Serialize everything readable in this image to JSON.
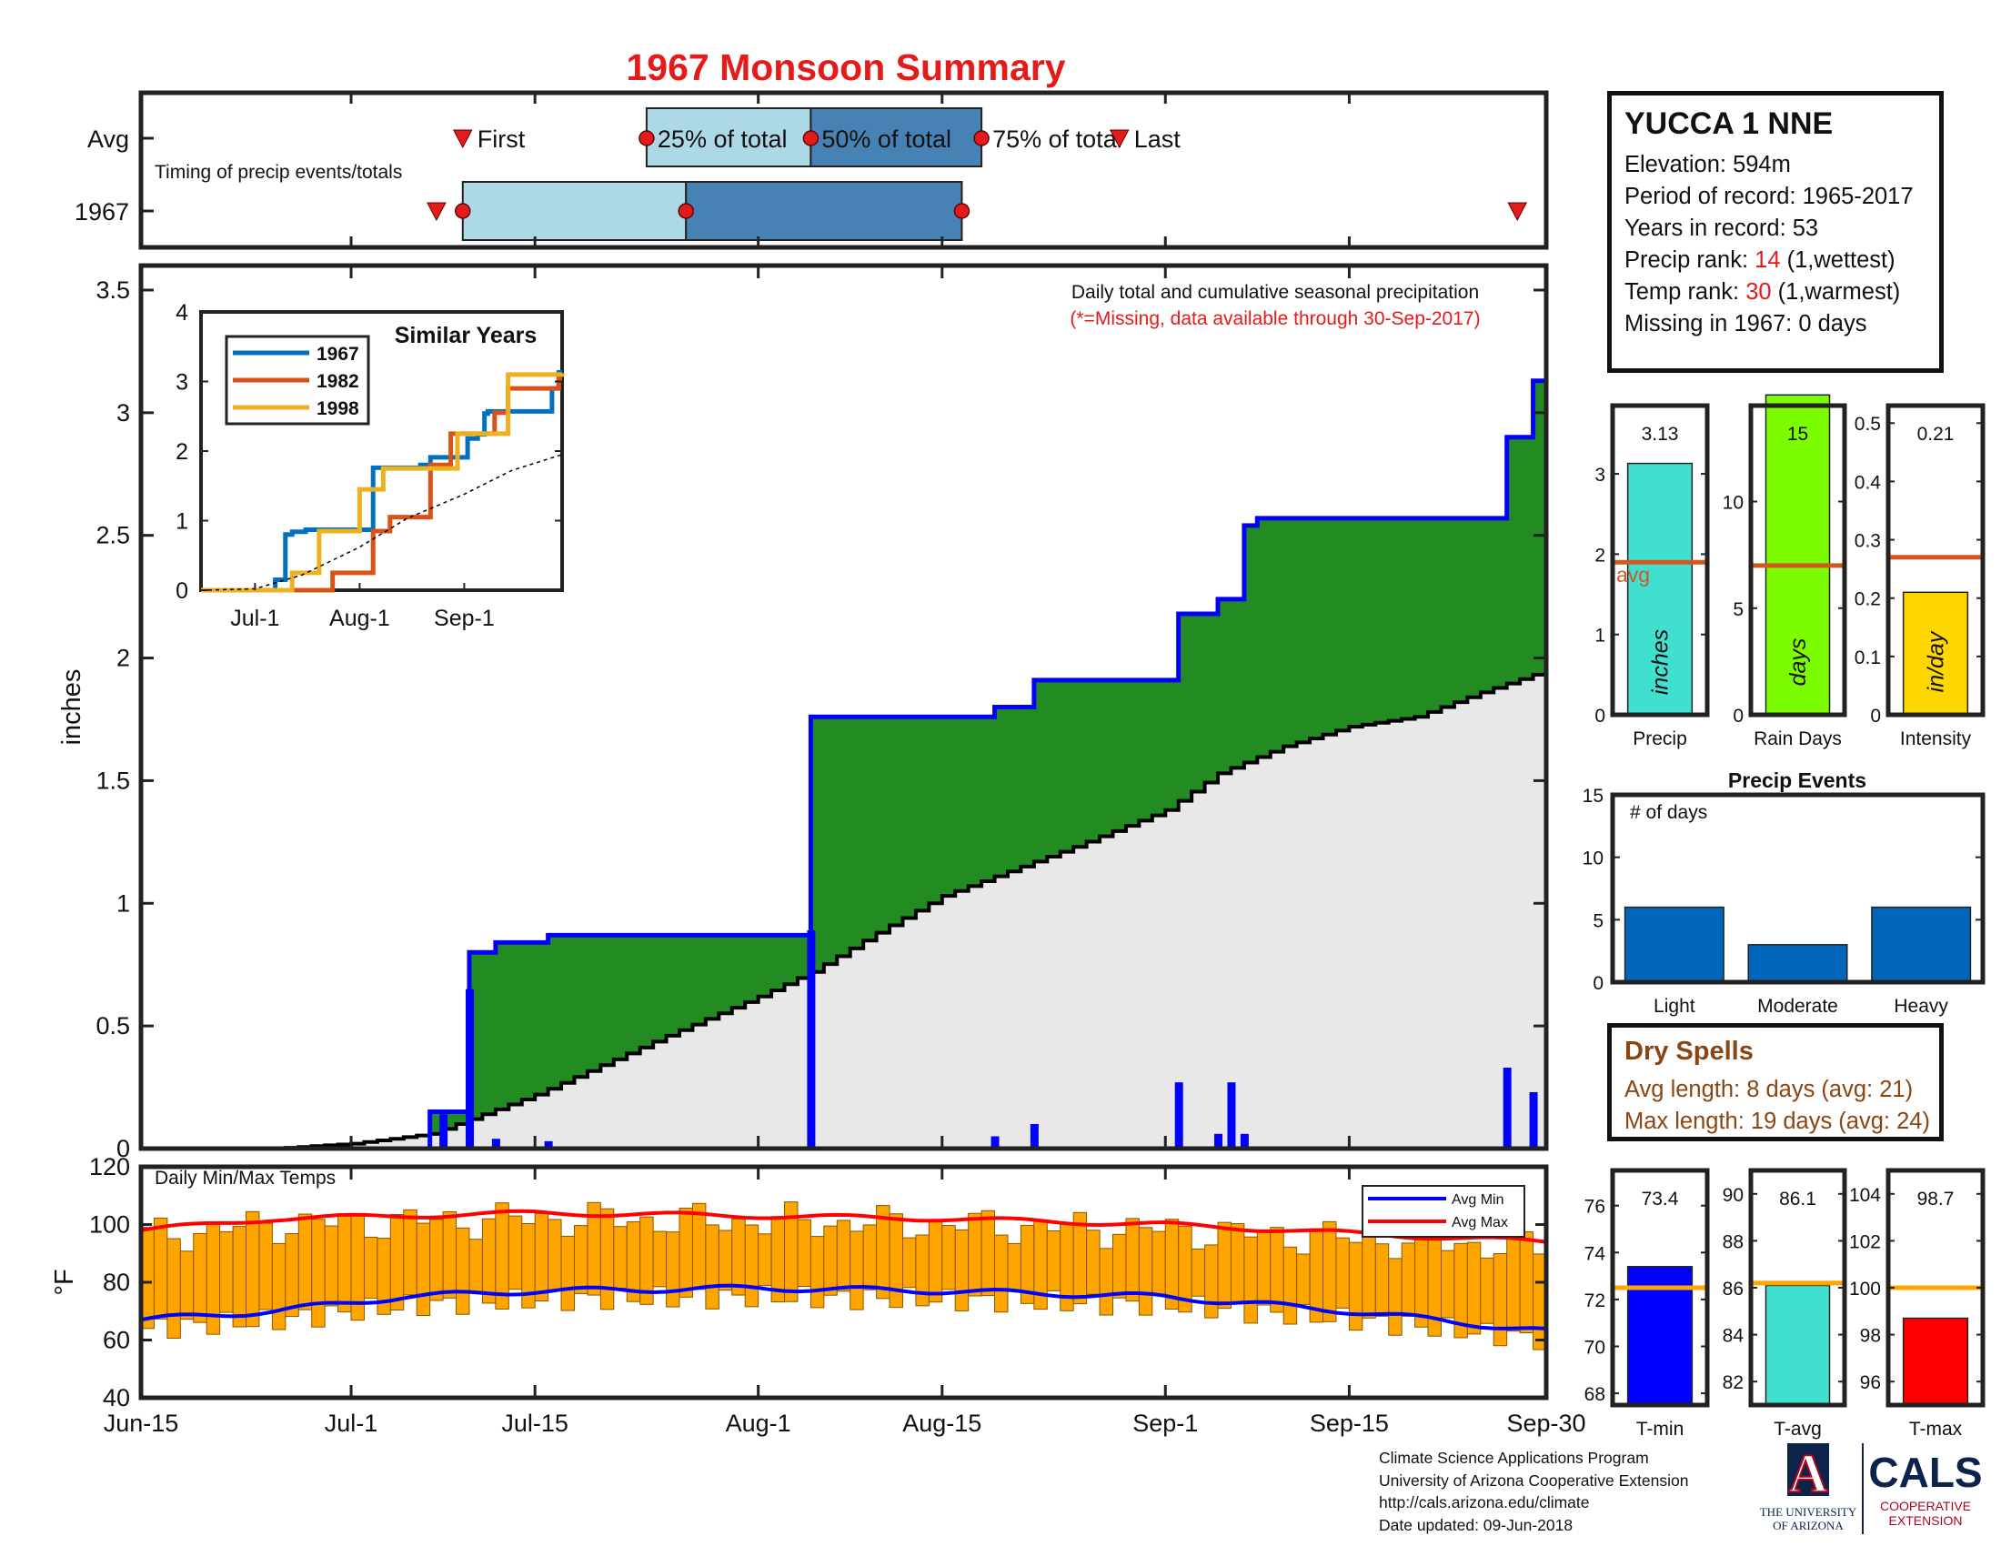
{
  "title": "1967 Monsoon Summary",
  "timing": {
    "row_labels": [
      "Avg",
      "1967"
    ],
    "subtitle": "Timing of precip events/totals",
    "markers": {
      "first": "First",
      "p25": "25% of total",
      "p50": "50% of total",
      "p75": "75% of total",
      "last": "Last"
    },
    "avg": {
      "first": 24.5,
      "p25": 38.5,
      "p50": 51.0,
      "p75": 64.0,
      "last": 74.5
    },
    "year": {
      "first": 22.5,
      "p25": 24.5,
      "p50": 41.5,
      "p75": 62.5,
      "last": 104.8
    }
  },
  "station": {
    "name": "YUCCA 1 NNE",
    "elevation": "Elevation: 594m",
    "period": "Period of record: 1965-2017",
    "years": "Years in record: 53",
    "precip_rank_prefix": "Precip rank: ",
    "precip_rank": "14",
    "precip_rank_suffix": " (1,wettest)",
    "temp_rank_prefix": "Temp rank: ",
    "temp_rank": "30",
    "temp_rank_suffix": " (1,warmest)",
    "missing": "Missing in 1967: 0 days"
  },
  "main_plot": {
    "note1": "Daily total and cumulative seasonal precipitation",
    "note2": "(*=Missing, data available through 30-Sep-2017)",
    "ylabel": "inches",
    "yticks": [
      "0",
      "0.5",
      "1",
      "1.5",
      "2",
      "2.5",
      "3",
      "3.5"
    ],
    "xticks": [
      "Jun-15",
      "Jul-1",
      "Jul-15",
      "Aug-1",
      "Aug-15",
      "Sep-1",
      "Sep-15",
      "Sep-30"
    ]
  },
  "inset": {
    "title": "Similar Years",
    "legend": [
      "1967",
      "1982",
      "1998"
    ],
    "yticks": [
      "0",
      "1",
      "2",
      "3",
      "4"
    ],
    "xticks": [
      "Jul-1",
      "Aug-1",
      "Sep-1"
    ]
  },
  "temp_plot": {
    "title": "Daily Min/Max Temps",
    "ylabel": "°F",
    "yticks": [
      "40",
      "60",
      "80",
      "100",
      "120"
    ],
    "legend": [
      "Avg Min",
      "Avg Max"
    ]
  },
  "mini_bars": [
    {
      "label": "Precip",
      "value": "3.13",
      "unit": "inches",
      "avg_label": "avg",
      "yticks": [
        "0",
        "1",
        "2",
        "3"
      ]
    },
    {
      "label": "Rain Days",
      "value": "15",
      "unit": "days",
      "yticks": [
        "0",
        "5",
        "10"
      ]
    },
    {
      "label": "Intensity",
      "value": "0.21",
      "unit": "in/day",
      "yticks": [
        "0",
        "0.1",
        "0.2",
        "0.3",
        "0.4",
        "0.5"
      ]
    }
  ],
  "events": {
    "title": "Precip Events",
    "ylabel": "# of days",
    "yticks": [
      "0",
      "5",
      "10",
      "15"
    ],
    "categories": [
      "Light",
      "Moderate",
      "Heavy"
    ]
  },
  "dry_spells": {
    "title": "Dry Spells",
    "avg": "Avg length: 8 days (avg: 21)",
    "max": "Max length: 19 days (avg: 24)"
  },
  "temp_bars": [
    {
      "label": "T-min",
      "value": "73.4",
      "yticks": [
        "68",
        "70",
        "72",
        "74",
        "76"
      ]
    },
    {
      "label": "T-avg",
      "value": "86.1",
      "yticks": [
        "82",
        "84",
        "86",
        "88",
        "90"
      ]
    },
    {
      "label": "T-max",
      "value": "98.7",
      "yticks": [
        "96",
        "98",
        "100",
        "102",
        "104"
      ]
    }
  ],
  "credit": [
    "Climate Science Applications Program",
    "University of Arizona Cooperative Extension",
    "http://cals.arizona.edu/climate",
    " Date updated: 09-Jun-2018"
  ],
  "logos": {
    "ua_letter": "A",
    "ua_name_1": "THE UNIVERSITY",
    "ua_name_2": "OF ARIZONA",
    "cals": "CALS",
    "cals_sub_1": "COOPERATIVE",
    "cals_sub_2": "EXTENSION"
  },
  "colors": {
    "title": "#e31b1b",
    "cum": "#228b22",
    "avg_fill": "#e8e8e8",
    "daily": "#0000ff",
    "light": "#add8e6",
    "dark": "#4682b4",
    "precip_bar": "#40e0d0",
    "days_bar": "#7cfc00",
    "int_bar": "#ffd700",
    "avg_line": "#d2581f",
    "events": "#0066bb",
    "tmin": "#0000ff",
    "tavg": "#40e0d0",
    "tmax": "#ff0000",
    "temp_bar": "#ffa500",
    "temp_ref": "#ffa500"
  },
  "chart_data": [
    {
      "type": "line",
      "title": "Daily total and cumulative seasonal precipitation",
      "xlabel": "",
      "ylabel": "inches",
      "xlim": [
        "Jun-15",
        "Sep-30"
      ],
      "ylim": [
        0,
        3.6
      ],
      "series": [
        {
          "name": "cumulative",
          "steps": [
            [
              "Jun-15",
              0
            ],
            [
              "Jul-7",
              0.15
            ],
            [
              "Jul-10",
              0.8
            ],
            [
              "Jul-12",
              0.84
            ],
            [
              "Jul-16",
              0.87
            ],
            [
              "Aug-5",
              1.76
            ],
            [
              "Aug-19",
              1.8
            ],
            [
              "Aug-22",
              1.91
            ],
            [
              "Sep-2",
              2.18
            ],
            [
              "Sep-5",
              2.24
            ],
            [
              "Sep-7",
              2.54
            ],
            [
              "Sep-8",
              2.57
            ],
            [
              "Sep-27",
              2.9
            ],
            [
              "Sep-29",
              3.13
            ]
          ]
        },
        {
          "name": "average cumulative",
          "points": [
            [
              "Jun-15",
              0
            ],
            [
              "Jun-25",
              0.0
            ],
            [
              "Jul-1",
              0.02
            ],
            [
              "Jul-7",
              0.06
            ],
            [
              "Jul-10",
              0.12
            ],
            [
              "Jul-15",
              0.22
            ],
            [
              "Jul-20",
              0.34
            ],
            [
              "Jul-25",
              0.46
            ],
            [
              "Aug-1",
              0.62
            ],
            [
              "Aug-5",
              0.72
            ],
            [
              "Aug-10",
              0.88
            ],
            [
              "Aug-15",
              1.03
            ],
            [
              "Aug-20",
              1.13
            ],
            [
              "Aug-25",
              1.23
            ],
            [
              "Sep-1",
              1.38
            ],
            [
              "Sep-5",
              1.53
            ],
            [
              "Sep-10",
              1.64
            ],
            [
              "Sep-15",
              1.72
            ],
            [
              "Sep-20",
              1.76
            ],
            [
              "Sep-25",
              1.86
            ],
            [
              "Sep-30",
              1.95
            ]
          ]
        },
        {
          "name": "daily",
          "bars": [
            [
              "Jul-8",
              0.14
            ],
            [
              "Jul-10",
              0.65
            ],
            [
              "Jul-12",
              0.04
            ],
            [
              "Jul-16",
              0.03
            ],
            [
              "Aug-5",
              0.89
            ],
            [
              "Aug-19",
              0.05
            ],
            [
              "Aug-22",
              0.1
            ],
            [
              "Sep-2",
              0.27
            ],
            [
              "Sep-5",
              0.06
            ],
            [
              "Sep-6",
              0.27
            ],
            [
              "Sep-7",
              0.06
            ],
            [
              "Sep-27",
              0.33
            ],
            [
              "Sep-29",
              0.23
            ]
          ]
        }
      ]
    },
    {
      "type": "line",
      "title": "Similar Years",
      "xlim": [
        "Jun-15",
        "Sep-30"
      ],
      "ylim": [
        0,
        4
      ],
      "series": [
        {
          "name": "1967",
          "steps": [
            [
              "Jun-15",
              0
            ],
            [
              "Jul-7",
              0.15
            ],
            [
              "Jul-10",
              0.8
            ],
            [
              "Jul-12",
              0.84
            ],
            [
              "Jul-16",
              0.87
            ],
            [
              "Aug-5",
              1.76
            ],
            [
              "Aug-19",
              1.8
            ],
            [
              "Aug-22",
              1.91
            ],
            [
              "Sep-2",
              2.18
            ],
            [
              "Sep-5",
              2.24
            ],
            [
              "Sep-7",
              2.54
            ],
            [
              "Sep-8",
              2.57
            ],
            [
              "Sep-27",
              2.9
            ],
            [
              "Sep-29",
              3.13
            ]
          ]
        },
        {
          "name": "1982",
          "steps": [
            [
              "Jun-15",
              0
            ],
            [
              "Jul-24",
              0.25
            ],
            [
              "Aug-5",
              0.85
            ],
            [
              "Aug-10",
              1.05
            ],
            [
              "Aug-22",
              1.8
            ],
            [
              "Aug-28",
              2.25
            ],
            [
              "Sep-10",
              2.55
            ],
            [
              "Sep-14",
              2.9
            ],
            [
              "Sep-29",
              3.03
            ]
          ]
        },
        {
          "name": "1998",
          "steps": [
            [
              "Jun-15",
              0
            ],
            [
              "Jul-12",
              0.25
            ],
            [
              "Jul-20",
              0.85
            ],
            [
              "Aug-1",
              1.45
            ],
            [
              "Aug-8",
              1.75
            ],
            [
              "Aug-30",
              2.25
            ],
            [
              "Sep-14",
              3.1
            ],
            [
              "Sep-30",
              3.12
            ]
          ]
        },
        {
          "name": "average",
          "points": [
            [
              "Jun-15",
              0
            ],
            [
              "Jul-1",
              0.02
            ],
            [
              "Jul-15",
              0.22
            ],
            [
              "Aug-1",
              0.62
            ],
            [
              "Aug-15",
              1.03
            ],
            [
              "Sep-1",
              1.38
            ],
            [
              "Sep-15",
              1.72
            ],
            [
              "Sep-30",
              1.95
            ]
          ]
        }
      ]
    },
    {
      "type": "bar",
      "title": "Daily Min/Max Temps",
      "ylabel": "°F",
      "ylim": [
        40,
        120
      ],
      "series": [
        {
          "name": "Avg Min",
          "points": [
            [
              "Jun-15",
              67
            ],
            [
              "Jun-25",
              70
            ],
            [
              "Jul-5",
              75
            ],
            [
              "Jul-15",
              77
            ],
            [
              "Aug-1",
              78
            ],
            [
              "Aug-15",
              77
            ],
            [
              "Sep-1",
              75
            ],
            [
              "Sep-15",
              70
            ],
            [
              "Sep-30",
              63
            ]
          ]
        },
        {
          "name": "Avg Max",
          "points": [
            [
              "Jun-15",
              98
            ],
            [
              "Jun-25",
              102
            ],
            [
              "Jul-5",
              103
            ],
            [
              "Jul-15",
              104
            ],
            [
              "Aug-1",
              103
            ],
            [
              "Aug-15",
              102
            ],
            [
              "Sep-1",
              100
            ],
            [
              "Sep-15",
              97
            ],
            [
              "Sep-30",
              94
            ]
          ]
        }
      ]
    },
    {
      "type": "bar",
      "categories": [
        "Precip"
      ],
      "values": [
        3.13
      ],
      "avg": 1.9,
      "ylim": [
        0,
        3.85
      ],
      "ylabel": "inches"
    },
    {
      "type": "bar",
      "categories": [
        "Rain Days"
      ],
      "values": [
        15
      ],
      "avg": 7,
      "ylim": [
        0,
        14.5
      ],
      "ylabel": "days"
    },
    {
      "type": "bar",
      "categories": [
        "Intensity"
      ],
      "values": [
        0.21
      ],
      "avg": 0.27,
      "ylim": [
        0,
        0.53
      ],
      "ylabel": "in/day"
    },
    {
      "type": "bar",
      "title": "Precip Events",
      "categories": [
        "Light",
        "Moderate",
        "Heavy"
      ],
      "values": [
        6,
        3,
        6
      ],
      "ylim": [
        0,
        15
      ],
      "ylabel": "# of days"
    },
    {
      "type": "bar",
      "categories": [
        "T-min"
      ],
      "values": [
        73.4
      ],
      "avg": 72.5,
      "ylim": [
        67.5,
        77.5
      ]
    },
    {
      "type": "bar",
      "categories": [
        "T-avg"
      ],
      "values": [
        86.1
      ],
      "avg": 86.2,
      "ylim": [
        81,
        91
      ]
    },
    {
      "type": "bar",
      "categories": [
        "T-max"
      ],
      "values": [
        98.7
      ],
      "avg": 100,
      "ylim": [
        95,
        105
      ]
    }
  ]
}
